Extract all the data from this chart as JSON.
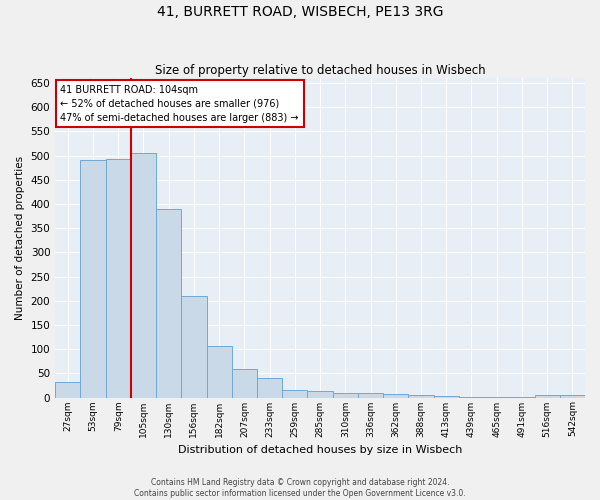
{
  "title": "41, BURRETT ROAD, WISBECH, PE13 3RG",
  "subtitle": "Size of property relative to detached houses in Wisbech",
  "xlabel": "Distribution of detached houses by size in Wisbech",
  "ylabel": "Number of detached properties",
  "footer_line1": "Contains HM Land Registry data © Crown copyright and database right 2024.",
  "footer_line2": "Contains public sector information licensed under the Open Government Licence v3.0.",
  "bar_labels": [
    "27sqm",
    "53sqm",
    "79sqm",
    "105sqm",
    "130sqm",
    "156sqm",
    "182sqm",
    "207sqm",
    "233sqm",
    "259sqm",
    "285sqm",
    "310sqm",
    "336sqm",
    "362sqm",
    "388sqm",
    "413sqm",
    "439sqm",
    "465sqm",
    "491sqm",
    "516sqm",
    "542sqm"
  ],
  "bar_values": [
    32,
    490,
    492,
    505,
    390,
    210,
    107,
    58,
    40,
    16,
    13,
    10,
    10,
    8,
    5,
    4,
    2,
    2,
    1,
    5,
    5
  ],
  "bar_color": "#c9d9e8",
  "bar_edge_color": "#6fa8d6",
  "bg_color": "#e8eef5",
  "grid_color": "#ffffff",
  "vline_color": "#cc0000",
  "annotation_text": "41 BURRETT ROAD: 104sqm\n← 52% of detached houses are smaller (976)\n47% of semi-detached houses are larger (883) →",
  "annotation_box_color": "#cc0000",
  "ylim": [
    0,
    660
  ],
  "yticks": [
    0,
    50,
    100,
    150,
    200,
    250,
    300,
    350,
    400,
    450,
    500,
    550,
    600,
    650
  ],
  "fig_bg_color": "#f0f0f0",
  "title_fontsize": 10,
  "subtitle_fontsize": 8.5
}
